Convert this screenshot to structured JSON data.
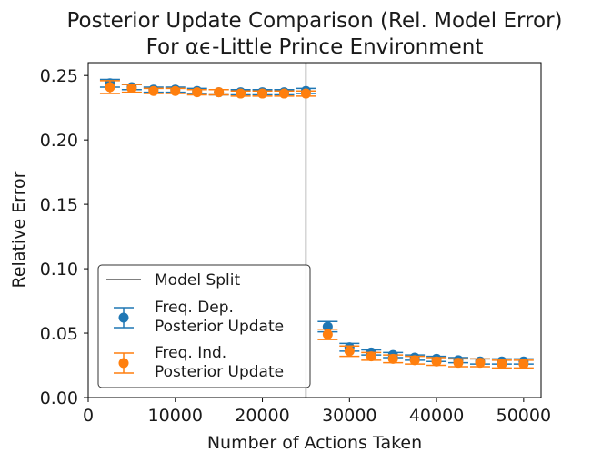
{
  "chart_data": {
    "type": "scatter",
    "title": "Posterior Update Comparison (Rel. Model Error)",
    "subtitle": "For αϵ-Little Prince Environment",
    "xlabel": "Number of Actions Taken",
    "ylabel": "Relative Error",
    "xlim": [
      0,
      52000
    ],
    "ylim": [
      0,
      0.26
    ],
    "xticks": [
      0,
      10000,
      20000,
      30000,
      40000,
      50000
    ],
    "yticks": [
      0.0,
      0.05,
      0.1,
      0.15,
      0.2,
      0.25
    ],
    "xtick_labels": [
      "0",
      "10000",
      "20000",
      "30000",
      "40000",
      "50000"
    ],
    "ytick_labels": [
      "0.00",
      "0.05",
      "0.10",
      "0.15",
      "0.20",
      "0.25"
    ],
    "grid": false,
    "legend_position": "lower-left",
    "vline": {
      "x": 25000,
      "name": "Model Split",
      "color": "#808080"
    },
    "series": [
      {
        "name": "Freq. Dep.\nPosterior Update",
        "color": "#1f77b4",
        "x": [
          2500,
          5000,
          7500,
          10000,
          12500,
          15000,
          17500,
          20000,
          22500,
          25000,
          27500,
          30000,
          32500,
          35000,
          37500,
          40000,
          42500,
          45000,
          47500,
          50000
        ],
        "y": [
          0.244,
          0.241,
          0.239,
          0.239,
          0.238,
          0.237,
          0.237,
          0.237,
          0.237,
          0.238,
          0.055,
          0.039,
          0.035,
          0.033,
          0.031,
          0.03,
          0.029,
          0.028,
          0.028,
          0.028
        ],
        "err": [
          0.003,
          0.002,
          0.002,
          0.002,
          0.002,
          0.002,
          0.002,
          0.002,
          0.002,
          0.002,
          0.004,
          0.003,
          0.002,
          0.002,
          0.002,
          0.002,
          0.002,
          0.002,
          0.002,
          0.002
        ]
      },
      {
        "name": "Freq. Ind.\nPosterior Update",
        "color": "#ff7f0e",
        "x": [
          2500,
          5000,
          7500,
          10000,
          12500,
          15000,
          17500,
          20000,
          22500,
          25000,
          27500,
          30000,
          32500,
          35000,
          37500,
          40000,
          42500,
          45000,
          47500,
          50000
        ],
        "y": [
          0.241,
          0.24,
          0.238,
          0.238,
          0.237,
          0.237,
          0.236,
          0.236,
          0.236,
          0.236,
          0.049,
          0.036,
          0.032,
          0.03,
          0.029,
          0.028,
          0.027,
          0.027,
          0.026,
          0.026
        ],
        "err": [
          0.005,
          0.003,
          0.002,
          0.002,
          0.002,
          0.002,
          0.002,
          0.002,
          0.002,
          0.002,
          0.004,
          0.004,
          0.003,
          0.003,
          0.003,
          0.003,
          0.003,
          0.003,
          0.003,
          0.003
        ]
      }
    ]
  }
}
